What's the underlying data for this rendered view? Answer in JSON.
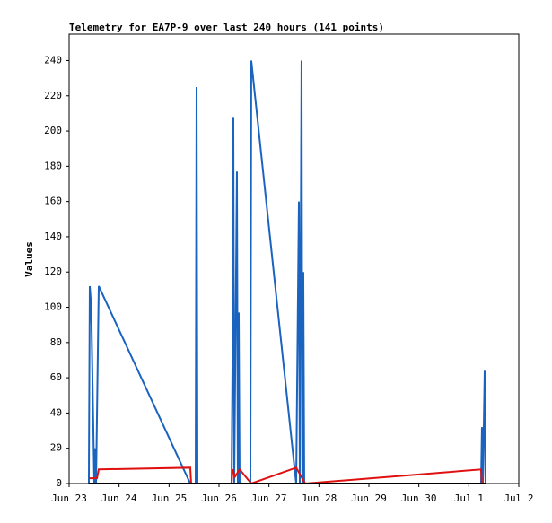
{
  "chart_data": {
    "type": "line",
    "title": "Telemetry for EA7P-9 over last 240 hours (141 points)",
    "y_label": "Values",
    "xlim": [
      0,
      9
    ],
    "xticks": [
      {
        "value": 0,
        "label": "Jun 23"
      },
      {
        "value": 1,
        "label": "Jun 24"
      },
      {
        "value": 2,
        "label": "Jun 25"
      },
      {
        "value": 3,
        "label": "Jun 26"
      },
      {
        "value": 4,
        "label": "Jun 27"
      },
      {
        "value": 5,
        "label": "Jun 28"
      },
      {
        "value": 6,
        "label": "Jun 29"
      },
      {
        "value": 7,
        "label": "Jun 30"
      },
      {
        "value": 8,
        "label": "Jul 1"
      },
      {
        "value": 9,
        "label": "Jul 2"
      }
    ],
    "ylim": [
      0,
      255
    ],
    "yticks": [
      0,
      20,
      40,
      60,
      80,
      100,
      120,
      140,
      160,
      180,
      200,
      220,
      240
    ],
    "series": [
      {
        "color": "#000000",
        "x": [
          0.395,
          8.335
        ],
        "values": [
          0,
          0
        ]
      },
      {
        "color": "#e01010",
        "x": [
          0.395,
          0.557,
          0.593,
          2.425,
          2.443,
          3.252,
          3.269,
          3.323,
          3.413,
          3.646,
          4.545,
          4.724,
          8.245,
          8.263
        ],
        "values": [
          3,
          3,
          8,
          9,
          0,
          0,
          8,
          4,
          8,
          0,
          9,
          0,
          8,
          0
        ]
      },
      {
        "color": "#1a64c0",
        "x": [
          0.395,
          0.397,
          0.413,
          0.431,
          0.449,
          0.467,
          0.485,
          0.503,
          0.521,
          0.539,
          0.593,
          2.425,
          2.533,
          2.551,
          2.569,
          3.252,
          3.269,
          3.287,
          3.305,
          3.359,
          3.377,
          3.395,
          3.413,
          3.628,
          3.646,
          4.545,
          4.599,
          4.617,
          4.652,
          4.67,
          4.688,
          4.706,
          8.245,
          8.263,
          8.281,
          8.317,
          8.335
        ],
        "values": [
          0,
          16,
          112,
          105,
          90,
          60,
          30,
          0,
          20,
          0,
          112,
          0,
          0,
          225,
          0,
          0,
          65,
          208,
          0,
          177,
          0,
          97,
          0,
          0,
          240,
          0,
          160,
          0,
          240,
          0,
          120,
          0,
          0,
          32,
          0,
          64,
          0
        ]
      }
    ]
  }
}
